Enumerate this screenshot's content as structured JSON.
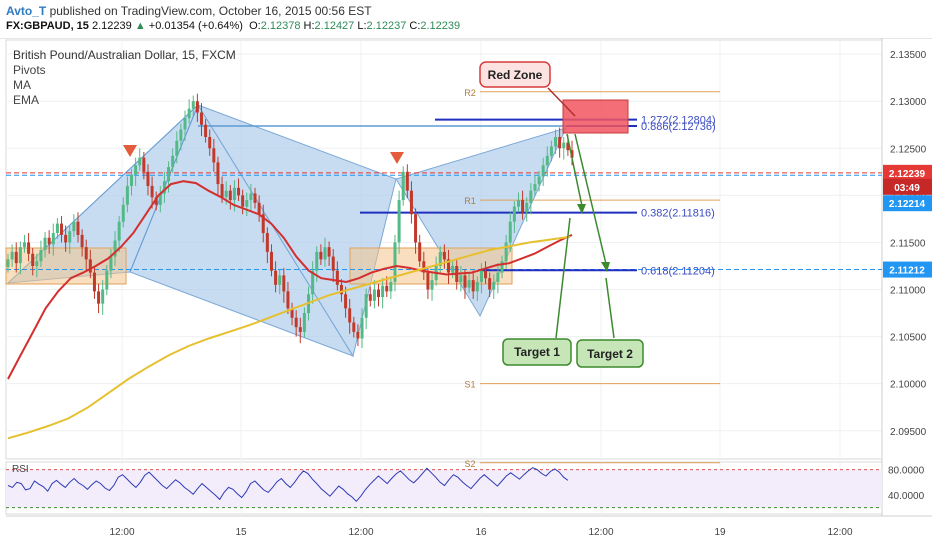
{
  "header": {
    "author": "Avto_T",
    "published_text": "published on TradingView.com, October 16, 2015 00:56 EST",
    "symbol": "FX:GBPAUD, 15",
    "last": "2.12239",
    "change_arrow": "▲",
    "change": "+0.01354 (+0.64%)",
    "o_label": "O:",
    "o": "2.12378",
    "h_label": "H:",
    "h": "2.12427",
    "l_label": "L:",
    "l": "2.12237",
    "c_label": "C:",
    "c": "2.12239"
  },
  "legend": {
    "title": "British Pound/Australian Dollar, 15, FXCM",
    "items": [
      "Pivots",
      "MA",
      "EMA"
    ]
  },
  "colors": {
    "up_candle": "#53b987",
    "down_candle": "#c0392b",
    "pattern_fill": "#a9c9ea",
    "ma_red": "#d32f2f",
    "ema_yellow": "#e6c02e",
    "pivot_orange": "#e0a15a",
    "fib_blue": "#1f2fbf",
    "rsi_line": "#2b3bb5",
    "price_axis_red": "#e53935",
    "price_axis_blue": "#2196f3"
  },
  "chart_data": {
    "type": "candlestick",
    "title": "British Pound/Australian Dollar, 15, FXCM",
    "ylim": [
      2.092,
      2.1365
    ],
    "price_ticks": [
      "2.13500",
      "2.13000",
      "2.12500",
      "2.12000",
      "2.11500",
      "2.11000",
      "2.10500",
      "2.10000",
      "2.09500"
    ],
    "time_ticks": [
      "12:00",
      "15",
      "12:00",
      "16",
      "12:00",
      "19",
      "12:00"
    ],
    "price_labels": [
      {
        "text": "2.12239",
        "kind": "last"
      },
      {
        "text": "03:49",
        "kind": "countdown"
      },
      {
        "text": "2.12214",
        "kind": "line"
      },
      {
        "text": "2.11212",
        "kind": "line"
      }
    ],
    "pivots": [
      {
        "name": "R2",
        "value": 2.131
      },
      {
        "name": "R1",
        "value": 2.1195
      },
      {
        "name": "S1",
        "value": 2.1
      },
      {
        "name": "S2",
        "value": 2.0916
      }
    ],
    "fib_levels": [
      {
        "label": "1.272(2.12804)",
        "value": 2.12804
      },
      {
        "label": "0.886(2.12736)",
        "value": 2.12736
      },
      {
        "label": "0.382(2.11816)",
        "value": 2.11816
      },
      {
        "label": "0.618(2.11204)",
        "value": 2.11204
      }
    ],
    "annotations": [
      "Red Zone",
      "Target 1",
      "Target 2"
    ],
    "rsi": {
      "label": "RSI",
      "ticks": [
        "80.0000",
        "40.0000"
      ],
      "overbought": 80,
      "oversold": 20,
      "ylim": [
        10,
        92
      ],
      "values": [
        55,
        52,
        60,
        58,
        48,
        50,
        62,
        57,
        53,
        46,
        58,
        63,
        57,
        52,
        60,
        66,
        59,
        55,
        49,
        56,
        62,
        58,
        51,
        47,
        55,
        68,
        72,
        65,
        58,
        52,
        60,
        71,
        76,
        69,
        62,
        55,
        50,
        57,
        64,
        59,
        52,
        47,
        41,
        50,
        58,
        52,
        46,
        40,
        33,
        44,
        52,
        49,
        42,
        36,
        45,
        58,
        62,
        55,
        48,
        44,
        52,
        61,
        66,
        58,
        52,
        60,
        70,
        78,
        74,
        65,
        58,
        50,
        44,
        38,
        46,
        54,
        49,
        42,
        37,
        30,
        38,
        48,
        56,
        63,
        70,
        64,
        58,
        66,
        73,
        78,
        71,
        64,
        59,
        66,
        74,
        82,
        75,
        68,
        60,
        55,
        64,
        72,
        68,
        61,
        55,
        50,
        58,
        66,
        72,
        66,
        60,
        54,
        62,
        70,
        75,
        70,
        65,
        72,
        78,
        83,
        80,
        74,
        70,
        77,
        81,
        76,
        68,
        63
      ]
    },
    "series": [
      {
        "name": "MA",
        "values": [
          2.1005,
          2.103,
          2.1055,
          2.108,
          2.1098,
          2.1112,
          2.1118,
          2.1125,
          2.1133,
          2.1145,
          2.116,
          2.118,
          2.12,
          2.1212,
          2.1215,
          2.1213,
          2.1205,
          2.1198,
          2.119,
          2.1185,
          2.118,
          2.117,
          2.1155,
          2.1135,
          2.112,
          2.1112,
          2.111,
          2.1108,
          2.1112,
          2.1118,
          2.1122,
          2.1125,
          2.1123,
          2.112,
          2.1118,
          2.1116,
          2.1117,
          2.1118,
          2.1122,
          2.1126,
          2.1128,
          2.1133,
          2.1138,
          2.1145,
          2.1152,
          2.1158
        ]
      },
      {
        "name": "EMA",
        "values": [
          2.0942,
          2.0948,
          2.0955,
          2.0963,
          2.0975,
          2.099,
          2.1005,
          2.1018,
          2.103,
          2.104,
          2.1048,
          2.1055,
          2.1062,
          2.107,
          2.1078,
          2.1086,
          2.1094,
          2.11,
          2.1106,
          2.1112,
          2.1118,
          2.1124,
          2.113,
          2.1136,
          2.1142,
          2.1146,
          2.115,
          2.1153,
          2.1156
        ]
      }
    ],
    "closes": [
      2.1132,
      2.114,
      2.1128,
      2.1145,
      2.115,
      2.1138,
      2.1125,
      2.113,
      2.1142,
      2.1155,
      2.1148,
      2.116,
      2.117,
      2.1158,
      2.115,
      2.1162,
      2.1172,
      2.1158,
      2.1145,
      2.1132,
      2.1118,
      2.1098,
      2.1085,
      2.11,
      2.112,
      2.1135,
      2.1152,
      2.1172,
      2.119,
      2.121,
      2.1222,
      2.1232,
      2.124,
      2.1225,
      2.121,
      2.1198,
      2.119,
      2.1202,
      2.1215,
      2.123,
      2.1242,
      2.1258,
      2.127,
      2.1282,
      2.1292,
      2.13,
      2.1288,
      2.1275,
      2.1262,
      2.125,
      2.1235,
      2.1212,
      2.1198,
      2.1205,
      2.1195,
      2.1208,
      2.12,
      2.1188,
      2.1195,
      2.1202,
      2.1192,
      2.118,
      2.116,
      2.114,
      2.112,
      2.1105,
      2.1115,
      2.1098,
      2.108,
      2.107,
      2.106,
      2.1055,
      2.1075,
      2.1095,
      2.112,
      2.114,
      2.1132,
      2.1145,
      2.1135,
      2.112,
      2.1105,
      2.1095,
      2.108,
      2.1065,
      2.1055,
      2.1048,
      2.107,
      2.1095,
      2.1088,
      2.11,
      2.1092,
      2.1104,
      2.1098,
      2.1108,
      2.115,
      2.1195,
      2.1225,
      2.1205,
      2.118,
      2.115,
      2.113,
      2.1118,
      2.11,
      2.111,
      2.1125,
      2.114,
      2.1132,
      2.1118,
      2.1125,
      2.1108,
      2.1115,
      2.1102,
      2.111,
      2.1098,
      2.1108,
      2.112,
      2.1112,
      2.11,
      2.1108,
      2.1118,
      2.113,
      2.115,
      2.1172,
      2.1188,
      2.1195,
      2.1182,
      2.1192,
      2.1205,
      2.1212,
      2.122,
      2.1232,
      2.1242,
      2.1252,
      2.1262,
      2.125,
      2.1256,
      2.1248,
      2.124
    ]
  }
}
